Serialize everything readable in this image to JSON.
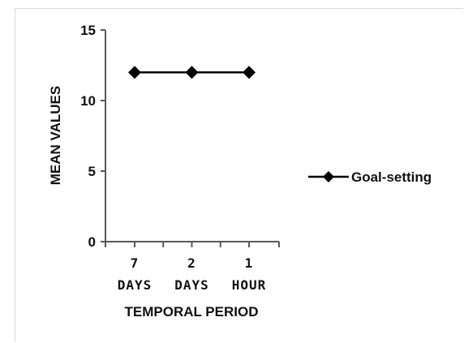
{
  "chart_data": {
    "type": "line",
    "categories": [
      [
        "7",
        "DAYS"
      ],
      [
        "2",
        "DAYS"
      ],
      [
        "1",
        "HOUR"
      ]
    ],
    "series": [
      {
        "name": "Goal-setting",
        "values": [
          12,
          12,
          12
        ],
        "color": "#000000",
        "marker": "diamond"
      }
    ],
    "xlabel": "TEMPORAL PERIOD",
    "ylabel": "MEAN VALUES",
    "ylim": [
      0,
      15
    ],
    "yticks": [
      "0",
      "5",
      "10",
      "15"
    ],
    "grid": false,
    "legend_position": "right"
  }
}
